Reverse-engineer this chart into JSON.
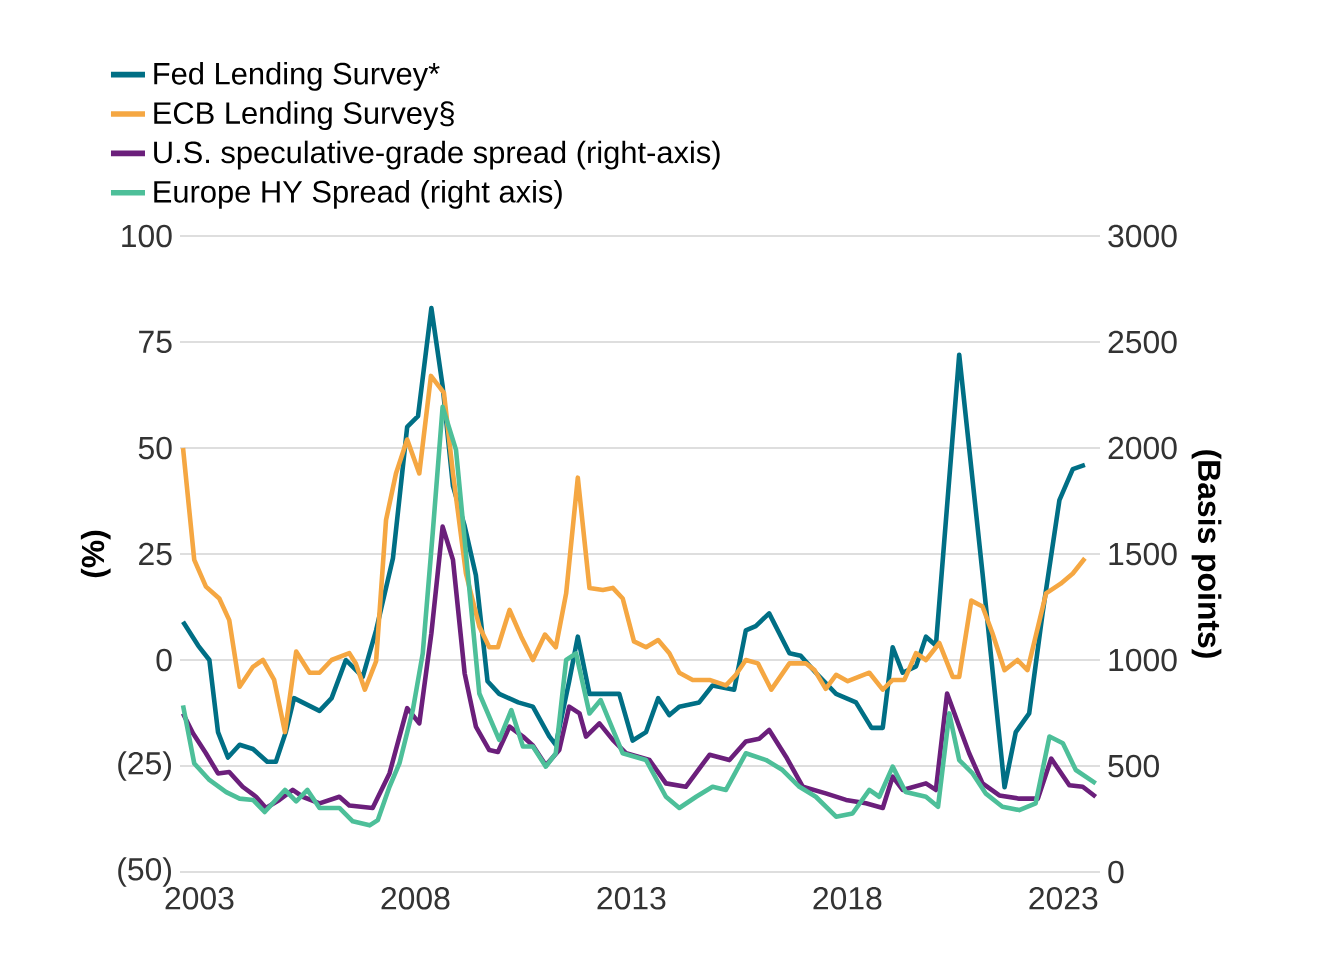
{
  "chart_data": {
    "type": "line",
    "ylabel": "(%)",
    "y2label": "(Basis points)",
    "xlim": [
      2002.55,
      2023.85
    ],
    "xticks": [
      2003,
      2008,
      2013,
      2018,
      2023
    ],
    "ylim": [
      -50,
      100
    ],
    "yticks": [
      {
        "value": -50,
        "label": "(50)"
      },
      {
        "value": -25,
        "label": "(25)"
      },
      0,
      25,
      50,
      75,
      100
    ],
    "y2lim": [
      0,
      3000
    ],
    "y2ticks": [
      0,
      500,
      1000,
      1500,
      2000,
      2500,
      3000
    ],
    "grid": "y",
    "legend": "top left",
    "series": [
      {
        "name": "Fed Lending Survey*",
        "color": "#006f85",
        "x": [
          2002.62,
          2002.97,
          2003.23,
          2003.43,
          2003.66,
          2003.93,
          2004.24,
          2004.57,
          2004.77,
          2005.0,
          2005.19,
          2005.78,
          2006.06,
          2006.39,
          2006.78,
          2007.09,
          2007.48,
          2007.81,
          2008.06,
          2008.37,
          2008.63,
          2008.87,
          2009.14,
          2009.4,
          2009.67,
          2009.94,
          2010.38,
          2010.72,
          2011.1,
          2011.25,
          2011.56,
          2011.76,
          2012.03,
          2012.41,
          2012.72,
          2013.03,
          2013.34,
          2013.62,
          2013.88,
          2014.11,
          2014.57,
          2014.88,
          2015.38,
          2015.65,
          2015.88,
          2016.19,
          2016.66,
          2016.92,
          2017.27,
          2017.74,
          2018.2,
          2018.56,
          2018.82,
          2019.05,
          2019.28,
          2019.59,
          2019.82,
          2020.05,
          2020.59,
          2021.13,
          2021.64,
          2021.9,
          2022.21,
          2022.52,
          2022.91,
          2023.22,
          2023.5
        ],
        "values": [
          9,
          3.4,
          0,
          -17,
          -23,
          -20,
          -21,
          -24,
          -24,
          -17,
          -9,
          -12,
          -9,
          0,
          -4,
          7,
          24,
          55,
          57.5,
          83,
          64.6,
          41,
          31.6,
          20,
          -5,
          -8,
          -10,
          -11,
          -18,
          -20,
          -5,
          5.5,
          -8,
          -8,
          -8,
          -19,
          -17,
          -9,
          -13,
          -11,
          -10,
          -6,
          -7,
          7,
          8,
          11,
          1.6,
          1,
          -3,
          -8,
          -10,
          -16,
          -16,
          3,
          -3,
          -1.5,
          5.5,
          3.4,
          72,
          20.4,
          -30,
          -17,
          -12.6,
          11,
          37.7,
          45,
          46
        ]
      },
      {
        "name": "ECB Lending Survey§",
        "color": "#f5a742",
        "x": [
          2002.62,
          2002.88,
          2003.15,
          2003.46,
          2003.69,
          2003.93,
          2004.24,
          2004.47,
          2004.73,
          2004.98,
          2005.24,
          2005.55,
          2005.78,
          2006.06,
          2006.47,
          2006.62,
          2006.83,
          2007.09,
          2007.32,
          2007.55,
          2007.81,
          2008.09,
          2008.36,
          2008.66,
          2008.87,
          2009.17,
          2009.48,
          2009.71,
          2009.91,
          2010.18,
          2010.45,
          2010.72,
          2011.0,
          2011.25,
          2011.49,
          2011.76,
          2012.03,
          2012.34,
          2012.57,
          2012.8,
          2013.06,
          2013.34,
          2013.62,
          2013.88,
          2014.11,
          2014.42,
          2014.81,
          2015.19,
          2015.42,
          2015.65,
          2015.93,
          2016.24,
          2016.66,
          2017.04,
          2017.24,
          2017.5,
          2017.74,
          2018.01,
          2018.51,
          2018.82,
          2019.05,
          2019.32,
          2019.59,
          2019.82,
          2020.13,
          2020.44,
          2020.59,
          2020.87,
          2021.13,
          2021.36,
          2021.64,
          2021.94,
          2022.17,
          2022.6,
          2022.94,
          2023.22,
          2023.5
        ],
        "values": [
          50,
          23.6,
          17.3,
          14.5,
          9.4,
          -6.3,
          -1.6,
          0,
          -4.7,
          -17,
          2,
          -3,
          -3,
          0,
          1.6,
          -0.8,
          -7,
          -0.3,
          33,
          44,
          52,
          44,
          67,
          63,
          44,
          20.4,
          7.9,
          3,
          3,
          11.8,
          5.5,
          0,
          6,
          3,
          15.7,
          43,
          17,
          16.5,
          17,
          14.5,
          4.4,
          3,
          4.7,
          1.6,
          -3,
          -4.7,
          -4.7,
          -6,
          -3.5,
          0,
          -0.8,
          -7,
          -0.8,
          -0.8,
          -2.4,
          -6.8,
          -3.5,
          -5,
          -3,
          -7,
          -4.7,
          -4.7,
          1.6,
          0,
          4,
          -4,
          -4,
          14,
          12.6,
          6.3,
          -2.4,
          0,
          -2.4,
          15.7,
          18,
          20.4,
          24
        ]
      },
      {
        "name": "U.S. speculative-grade spread (right-axis)",
        "color": "#6b1f7b",
        "axis": "y2",
        "x": [
          2002.62,
          2002.85,
          2003.15,
          2003.43,
          2003.69,
          2004.0,
          2004.31,
          2004.54,
          2004.85,
          2005.16,
          2005.39,
          2005.78,
          2006.24,
          2006.47,
          2007.01,
          2007.4,
          2007.81,
          2008.09,
          2008.37,
          2008.63,
          2008.87,
          2009.14,
          2009.4,
          2009.71,
          2009.91,
          2010.18,
          2010.49,
          2010.72,
          2011.02,
          2011.33,
          2011.56,
          2011.8,
          2011.95,
          2012.26,
          2012.57,
          2012.88,
          2013.42,
          2013.8,
          2014.26,
          2014.81,
          2015.27,
          2015.65,
          2015.96,
          2016.19,
          2016.58,
          2016.97,
          2017.5,
          2017.97,
          2018.43,
          2018.82,
          2019.05,
          2019.28,
          2019.82,
          2020.05,
          2020.31,
          2020.59,
          2020.82,
          2021.13,
          2021.52,
          2021.98,
          2022.41,
          2022.72,
          2023.14,
          2023.45,
          2023.75
        ],
        "values": [
          748,
          654,
          560,
          465,
          472,
          402,
          355,
          302,
          340,
          387,
          355,
          324,
          355,
          314,
          302,
          465,
          773,
          701,
          1126,
          1629,
          1472,
          937,
          686,
          575,
          566,
          686,
          639,
          597,
          503,
          575,
          780,
          748,
          639,
          701,
          623,
          560,
          528,
          418,
          402,
          553,
          528,
          616,
          629,
          670,
          544,
          402,
          371,
          340,
          324,
          302,
          450,
          387,
          418,
          387,
          842,
          686,
          560,
          418,
          361,
          346,
          346,
          535,
          409,
          402,
          355
        ]
      },
      {
        "name": "Europe HY Spread (right axis)",
        "color": "#4dbf99",
        "axis": "y2",
        "x": [
          2002.62,
          2002.88,
          2003.23,
          2003.62,
          2003.93,
          2004.24,
          2004.51,
          2004.98,
          2005.24,
          2005.5,
          2005.78,
          2006.24,
          2006.55,
          2006.94,
          2007.13,
          2007.4,
          2007.63,
          2007.94,
          2008.17,
          2008.4,
          2008.63,
          2008.94,
          2009.17,
          2009.48,
          2009.94,
          2010.22,
          2010.49,
          2010.72,
          2011.02,
          2011.25,
          2011.49,
          2011.72,
          2012.03,
          2012.29,
          2012.8,
          2013.34,
          2013.8,
          2014.11,
          2014.5,
          2014.88,
          2015.19,
          2015.65,
          2016.12,
          2016.5,
          2016.89,
          2017.27,
          2017.74,
          2018.12,
          2018.51,
          2018.74,
          2019.05,
          2019.35,
          2019.82,
          2020.1,
          2020.36,
          2020.59,
          2020.9,
          2021.2,
          2021.59,
          2021.98,
          2022.36,
          2022.68,
          2022.99,
          2023.29,
          2023.75
        ],
        "values": [
          786,
          512,
          434,
          377,
          346,
          340,
          283,
          387,
          333,
          387,
          302,
          302,
          239,
          220,
          245,
          402,
          512,
          764,
          1031,
          1597,
          2194,
          1991,
          1503,
          842,
          623,
          764,
          592,
          592,
          497,
          560,
          1000,
          1031,
          748,
          811,
          560,
          528,
          355,
          302,
          355,
          402,
          387,
          560,
          528,
          481,
          402,
          355,
          261,
          276,
          387,
          355,
          497,
          377,
          355,
          308,
          748,
          528,
          465,
          371,
          308,
          292,
          324,
          639,
          607,
          481,
          418
        ]
      }
    ]
  }
}
